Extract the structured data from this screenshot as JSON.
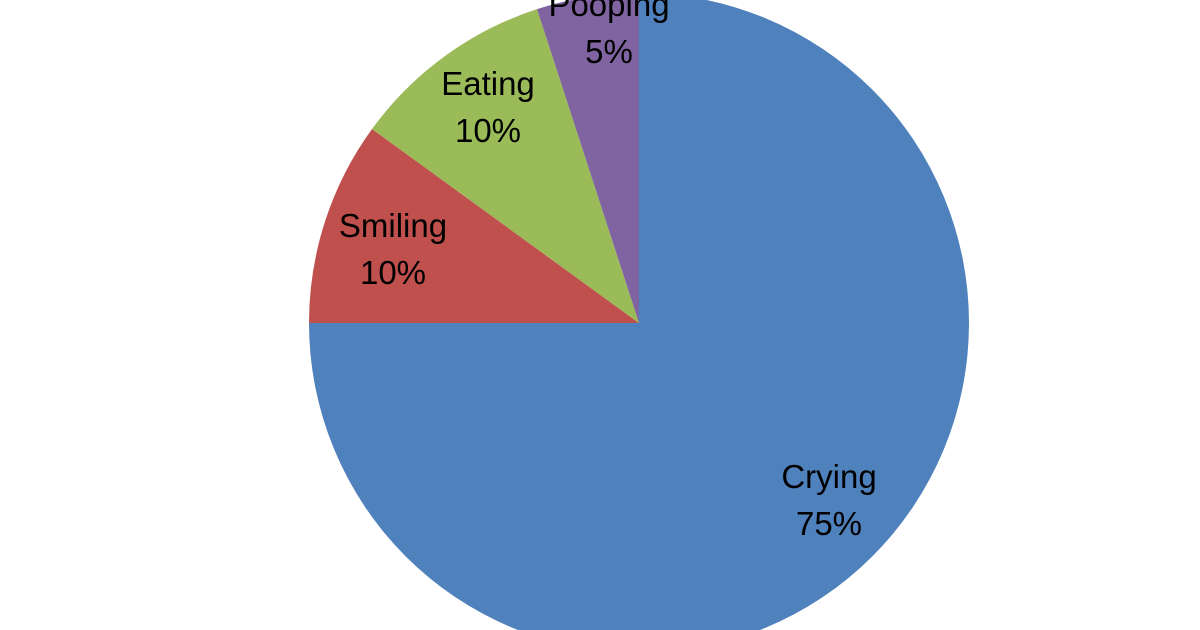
{
  "chart_data": {
    "type": "pie",
    "title": "",
    "slices": [
      {
        "label": "Crying",
        "value": 75,
        "value_label": "75%",
        "color": "#4F81BD"
      },
      {
        "label": "Smiling",
        "value": 10,
        "value_label": "10%",
        "color": "#C0504D"
      },
      {
        "label": "Eating",
        "value": 10,
        "value_label": "10%",
        "color": "#9BBB59"
      },
      {
        "label": "Pooping",
        "value": 5,
        "value_label": "5%",
        "color": "#8064A2"
      }
    ],
    "start_angle": "12 o'clock",
    "direction": "clockwise",
    "legend": "none",
    "data_labels": "category name and percentage on slices"
  }
}
